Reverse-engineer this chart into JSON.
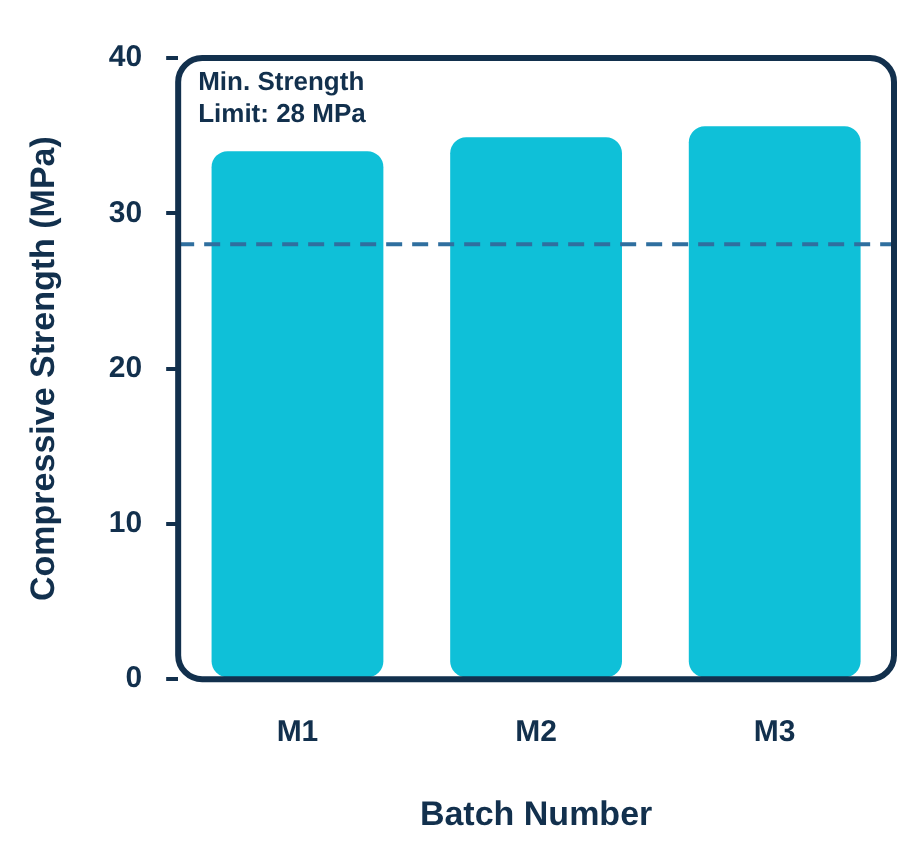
{
  "chart_data": {
    "type": "bar",
    "xlabel": "Batch Number",
    "ylabel": "Compressive Strength (MPa)",
    "categories": [
      "M1",
      "M2",
      "M3"
    ],
    "series": [
      {
        "color": "#0fc0d8",
        "values": [
          34,
          34.9,
          35.6
        ]
      }
    ],
    "ylim": [
      0,
      40
    ],
    "yticks": [
      0,
      10,
      20,
      30,
      40
    ],
    "annotations": [
      "Min. Strength\nLimit: 28 MPa"
    ],
    "ref_lines": [
      {
        "axis": "y",
        "value": 28,
        "color": "#2f6f9f",
        "line_style": "dashed"
      }
    ]
  }
}
